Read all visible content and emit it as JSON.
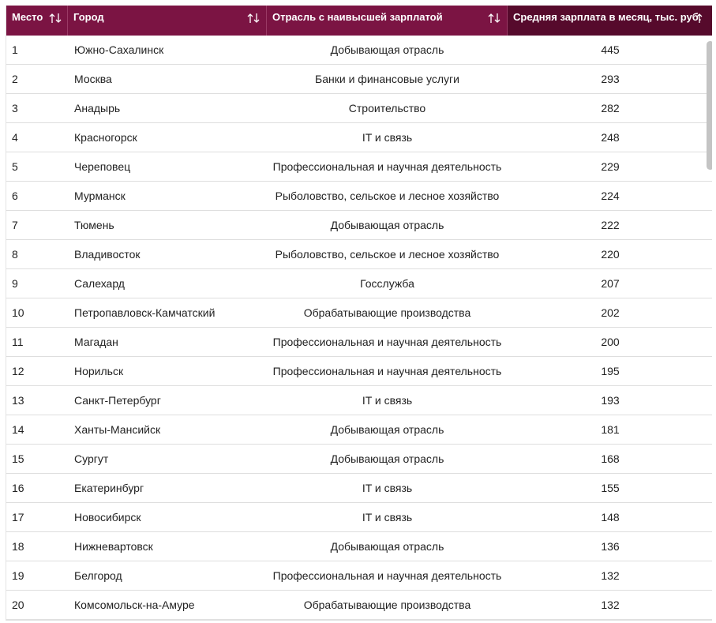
{
  "header": {
    "columns": [
      "Место",
      "Город",
      "Отрасль с наивысшей зарплатой",
      "Средняя зарплата в месяц, тыс. руб."
    ]
  },
  "table": {
    "rows": [
      [
        1,
        "Южно-Сахалинск",
        "Добывающая отрасль",
        445
      ],
      [
        2,
        "Москва",
        "Банки и финансовые услуги",
        293
      ],
      [
        3,
        "Анадырь",
        "Строительство",
        282
      ],
      [
        4,
        "Красногорск",
        "IT и связь",
        248
      ],
      [
        5,
        "Череповец",
        "Профессиональная и научная деятельность",
        229
      ],
      [
        6,
        "Мурманск",
        "Рыболовство, сельское и лесное хозяйство",
        224
      ],
      [
        7,
        "Тюмень",
        "Добывающая отрасль",
        222
      ],
      [
        8,
        "Владивосток",
        "Рыболовство, сельское и лесное хозяйство",
        220
      ],
      [
        9,
        "Салехард",
        "Госслужба",
        207
      ],
      [
        10,
        "Петропавловск-Камчатский",
        "Обрабатывающие производства",
        202
      ],
      [
        11,
        "Магадан",
        "Профессиональная и научная деятельность",
        200
      ],
      [
        12,
        "Норильск",
        "Профессиональная и научная деятельность",
        195
      ],
      [
        13,
        "Санкт-Петербург",
        "IT и связь",
        193
      ],
      [
        14,
        "Ханты-Мансийск",
        "Добывающая отрасль",
        181
      ],
      [
        15,
        "Сургут",
        "Добывающая отрасль",
        168
      ],
      [
        16,
        "Екатеринбург",
        "IT и связь",
        155
      ],
      [
        17,
        "Новосибирск",
        "IT и связь",
        148
      ],
      [
        18,
        "Нижневартовск",
        "Добывающая отрасль",
        136
      ],
      [
        19,
        "Белгород",
        "Профессиональная и научная деятельность",
        132
      ],
      [
        20,
        "Комсомольск-на-Амуре",
        "Обрабатывающие производства",
        132
      ]
    ]
  }
}
